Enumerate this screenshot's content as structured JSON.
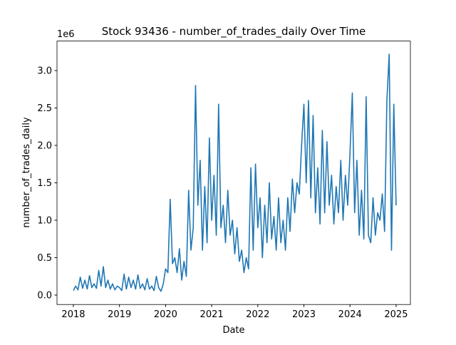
{
  "chart_data": {
    "type": "line",
    "title": "Stock 93436 - number_of_trades_daily Over Time",
    "xlabel": "Date",
    "ylabel": "number_of_trades_daily",
    "y_offset_label": "1e6",
    "xlim": [
      2017.645,
      2025.31
    ],
    "xticks": [
      2018,
      2019,
      2020,
      2021,
      2022,
      2023,
      2024,
      2025
    ],
    "ylim": [
      -0.126,
      3.394
    ],
    "yticks": [
      {
        "value": 0,
        "label": "0.0"
      },
      {
        "value": 0.5,
        "label": "0.5"
      },
      {
        "value": 1,
        "label": "1.0"
      },
      {
        "value": 1.5,
        "label": "1.5"
      },
      {
        "value": 2,
        "label": "2.0"
      },
      {
        "value": 2.5,
        "label": "2.5"
      },
      {
        "value": 3,
        "label": "3.0"
      }
    ],
    "x": [
      2018.0,
      2018.05,
      2018.1,
      2018.15,
      2018.2,
      2018.25,
      2018.3,
      2018.35,
      2018.4,
      2018.45,
      2018.5,
      2018.55,
      2018.6,
      2018.65,
      2018.7,
      2018.75,
      2018.8,
      2018.85,
      2018.9,
      2018.95,
      2019.0,
      2019.05,
      2019.1,
      2019.15,
      2019.2,
      2019.25,
      2019.3,
      2019.35,
      2019.4,
      2019.45,
      2019.5,
      2019.55,
      2019.6,
      2019.65,
      2019.7,
      2019.75,
      2019.8,
      2019.85,
      2019.9,
      2019.95,
      2020.0,
      2020.05,
      2020.1,
      2020.15,
      2020.2,
      2020.25,
      2020.3,
      2020.35,
      2020.4,
      2020.45,
      2020.5,
      2020.55,
      2020.6,
      2020.65,
      2020.7,
      2020.75,
      2020.8,
      2020.85,
      2020.9,
      2020.95,
      2021.0,
      2021.05,
      2021.1,
      2021.15,
      2021.2,
      2021.25,
      2021.3,
      2021.35,
      2021.4,
      2021.45,
      2021.5,
      2021.55,
      2021.6,
      2021.65,
      2021.7,
      2021.75,
      2021.8,
      2021.85,
      2021.9,
      2021.95,
      2022.0,
      2022.05,
      2022.1,
      2022.15,
      2022.2,
      2022.25,
      2022.3,
      2022.35,
      2022.4,
      2022.45,
      2022.5,
      2022.55,
      2022.6,
      2022.65,
      2022.7,
      2022.75,
      2022.8,
      2022.85,
      2022.9,
      2022.95,
      2023.0,
      2023.05,
      2023.1,
      2023.15,
      2023.2,
      2023.25,
      2023.3,
      2023.35,
      2023.4,
      2023.45,
      2023.5,
      2023.55,
      2023.6,
      2023.65,
      2023.7,
      2023.75,
      2023.8,
      2023.85,
      2023.9,
      2023.95,
      2024.0,
      2024.05,
      2024.1,
      2024.15,
      2024.2,
      2024.25,
      2024.3,
      2024.35,
      2024.4,
      2024.45,
      2024.5,
      2024.55,
      2024.6,
      2024.65,
      2024.7,
      2024.75,
      2024.8,
      2024.85,
      2024.9,
      2024.95,
      2025.0
    ],
    "series": [
      {
        "color": "#1f77b4",
        "values": [
          0.06,
          0.12,
          0.07,
          0.24,
          0.09,
          0.2,
          0.08,
          0.26,
          0.1,
          0.15,
          0.09,
          0.33,
          0.12,
          0.38,
          0.1,
          0.2,
          0.08,
          0.15,
          0.07,
          0.12,
          0.1,
          0.06,
          0.28,
          0.08,
          0.24,
          0.1,
          0.2,
          0.08,
          0.27,
          0.09,
          0.15,
          0.07,
          0.22,
          0.08,
          0.12,
          0.06,
          0.25,
          0.1,
          0.05,
          0.15,
          0.35,
          0.3,
          1.28,
          0.42,
          0.5,
          0.3,
          0.62,
          0.2,
          0.45,
          0.25,
          1.4,
          0.6,
          0.9,
          2.8,
          1.2,
          1.8,
          0.6,
          1.45,
          0.7,
          2.1,
          1.0,
          1.6,
          0.8,
          2.55,
          0.9,
          1.2,
          0.7,
          1.4,
          0.8,
          1.0,
          0.55,
          0.9,
          0.45,
          0.6,
          0.3,
          0.5,
          0.35,
          1.7,
          0.6,
          1.75,
          0.9,
          1.3,
          0.5,
          1.2,
          0.7,
          1.5,
          0.75,
          1.05,
          0.6,
          1.3,
          0.7,
          1.0,
          0.6,
          1.3,
          0.85,
          1.55,
          1.1,
          1.5,
          1.35,
          2.0,
          2.55,
          1.5,
          2.6,
          1.3,
          2.4,
          1.1,
          1.7,
          0.95,
          2.2,
          1.1,
          2.05,
          1.2,
          1.6,
          0.95,
          1.45,
          1.1,
          1.8,
          1.0,
          1.6,
          1.2,
          1.9,
          2.7,
          1.1,
          1.8,
          0.8,
          1.4,
          0.75,
          2.65,
          0.8,
          0.7,
          1.3,
          0.8,
          1.1,
          1.0,
          1.35,
          0.85,
          2.6,
          3.22,
          0.6,
          2.55,
          1.2
        ]
      }
    ]
  }
}
